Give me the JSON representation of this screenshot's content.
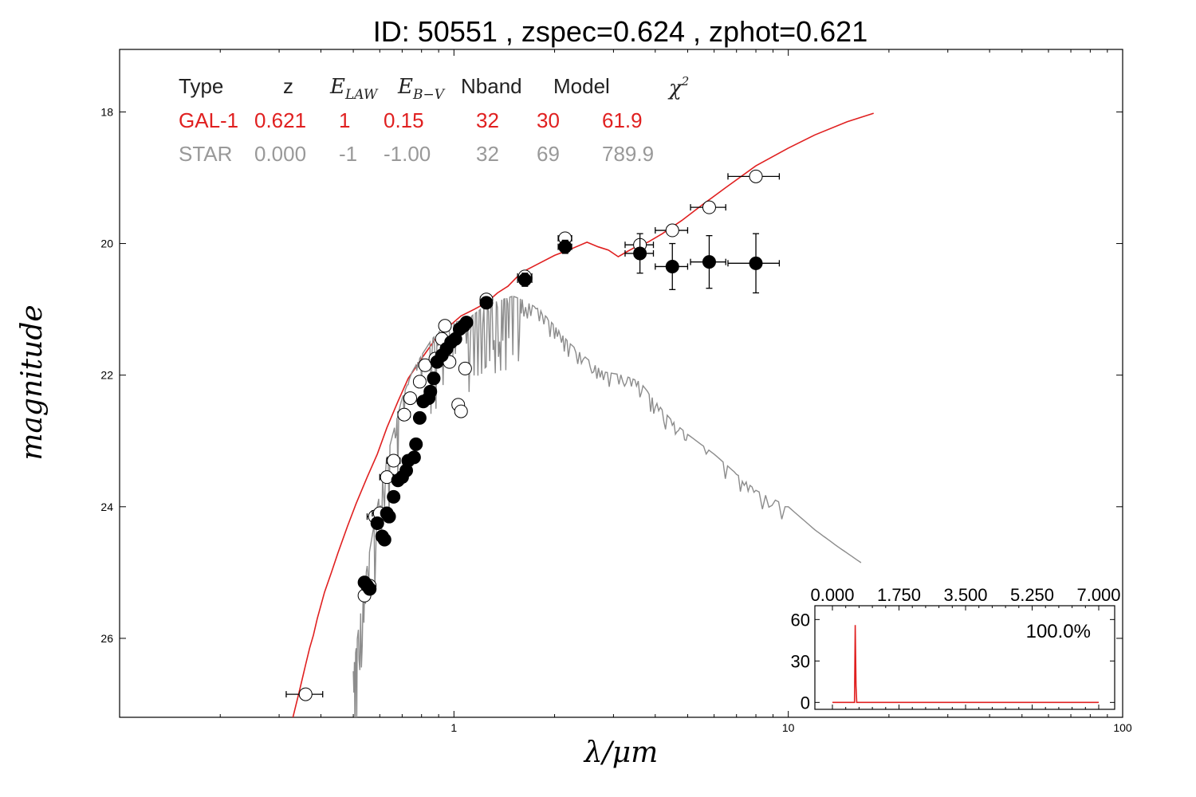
{
  "title": "ID:  50551 , zspec=0.624 , zphot=0.621",
  "colors": {
    "galaxy": "#e02020",
    "star": "#8c8c8c",
    "points": "#000000",
    "open": "#ffffff"
  },
  "fit_table": {
    "header": {
      "type": "Type",
      "z": "z",
      "e_law": "E",
      "e_law_sub": "LAW",
      "e_bv": "E",
      "e_bv_sub": "B−V",
      "nband": "Nband",
      "model": "Model",
      "chi2": "χ",
      "chi2_sup": "2"
    },
    "rows": [
      {
        "type": "GAL-1",
        "z": "0.621",
        "e_law": "1",
        "e_bv": "0.15",
        "nband": "32",
        "model": "30",
        "chi2": "61.9",
        "color": "#e02020"
      },
      {
        "type": "STAR",
        "z": "0.000",
        "e_law": "-1",
        "e_bv": "-1.00",
        "nband": "32",
        "model": "69",
        "chi2": "789.9",
        "color": "#999999"
      }
    ]
  },
  "chart_data": [
    {
      "type": "scatter",
      "xlabel": "λ/μm",
      "ylabel": "magnitude",
      "x_scale": "log",
      "xlim": [
        0.1,
        100
      ],
      "ylim": [
        27.2,
        17.05
      ],
      "y_inverted": true,
      "x_ticks": [
        1,
        10,
        100
      ],
      "x_tick_labels": [
        "1",
        "10",
        "100"
      ],
      "y_ticks": [
        18,
        20,
        22,
        24,
        26
      ],
      "y_tick_labels": [
        "18",
        "20",
        "22",
        "24",
        "26"
      ],
      "series": [
        {
          "name": "GAL-1",
          "kind": "line",
          "color": "#e02020",
          "x": [
            0.33,
            0.345,
            0.36,
            0.37,
            0.38,
            0.39,
            0.41,
            0.43,
            0.45,
            0.48,
            0.51,
            0.55,
            0.59,
            0.63,
            0.68,
            0.73,
            0.8,
            0.88,
            0.97,
            1.05,
            1.15,
            1.25,
            1.35,
            1.45,
            1.55,
            1.65,
            1.8,
            2.0,
            2.2,
            2.5,
            2.7,
            2.9,
            3.1,
            3.3,
            3.5,
            3.8,
            4.2,
            4.8,
            5.5,
            6.5,
            8.0,
            10.0,
            12.0,
            15.0,
            18.0
          ],
          "y": [
            27.2,
            26.8,
            26.4,
            26.15,
            25.95,
            25.7,
            25.3,
            25.0,
            24.7,
            24.3,
            23.95,
            23.55,
            23.2,
            22.8,
            22.4,
            22.05,
            21.75,
            21.45,
            21.25,
            21.1,
            21.0,
            20.9,
            20.75,
            20.65,
            20.5,
            20.4,
            20.3,
            20.18,
            20.1,
            19.98,
            20.05,
            20.1,
            20.2,
            20.12,
            20.05,
            19.98,
            19.85,
            19.65,
            19.42,
            19.15,
            18.82,
            18.55,
            18.35,
            18.15,
            18.02
          ]
        },
        {
          "name": "STAR",
          "kind": "line",
          "color": "#8c8c8c",
          "x": [
            0.5,
            0.52,
            0.55,
            0.58,
            0.62,
            0.66,
            0.7,
            0.75,
            0.8,
            0.86,
            0.92,
            1.0,
            1.1,
            1.2,
            1.3,
            1.4,
            1.5,
            1.6,
            1.8,
            2.0,
            2.2,
            2.5,
            2.8,
            3.2,
            3.6,
            4.0,
            4.5,
            5.0,
            6.0,
            7.0,
            8.0,
            10.0,
            12.0,
            14.0,
            16.5
          ],
          "y": [
            26.5,
            25.8,
            24.9,
            24.2,
            23.4,
            22.85,
            22.35,
            21.95,
            21.7,
            21.45,
            21.3,
            21.2,
            21.15,
            21.0,
            20.9,
            20.85,
            20.8,
            20.85,
            21.0,
            21.25,
            21.5,
            21.75,
            21.95,
            22.0,
            22.1,
            22.4,
            22.7,
            22.9,
            23.2,
            23.5,
            23.75,
            24.0,
            24.35,
            24.6,
            24.85
          ]
        },
        {
          "name": "observed (open)",
          "kind": "points-open",
          "x": [
            0.36,
            0.54,
            0.56,
            0.58,
            0.6,
            0.63,
            0.66,
            0.71,
            0.74,
            0.79,
            0.82,
            0.88,
            0.92,
            0.94,
            0.97,
            1.03,
            1.05,
            1.08,
            1.25,
            1.63,
            2.15,
            3.6,
            4.5,
            5.8,
            8.0
          ],
          "y": [
            26.85,
            25.35,
            25.2,
            24.15,
            24.1,
            23.55,
            23.3,
            22.6,
            22.35,
            22.1,
            21.85,
            21.75,
            21.45,
            21.25,
            21.8,
            22.45,
            22.55,
            21.9,
            20.85,
            20.5,
            19.92,
            20.02,
            19.8,
            19.45,
            18.98
          ],
          "xerr": [
            0.045,
            0.02,
            0.02,
            0.03,
            0.03,
            0.03,
            0.03,
            0.03,
            0.03,
            0.03,
            0.03,
            0.03,
            0.03,
            0.03,
            0.03,
            0.04,
            0.04,
            0.04,
            0.05,
            0.08,
            0.1,
            0.35,
            0.5,
            0.7,
            1.4
          ]
        },
        {
          "name": "observed (filled)",
          "kind": "points-filled",
          "x": [
            0.54,
            0.55,
            0.56,
            0.59,
            0.61,
            0.62,
            0.63,
            0.64,
            0.66,
            0.68,
            0.7,
            0.72,
            0.73,
            0.76,
            0.77,
            0.79,
            0.81,
            0.84,
            0.85,
            0.87,
            0.89,
            0.92,
            0.95,
            0.98,
            1.01,
            1.04,
            1.07,
            1.09,
            1.25,
            1.63,
            2.15,
            3.6,
            4.5,
            5.8,
            8.0
          ],
          "y": [
            25.15,
            25.2,
            25.25,
            24.25,
            24.45,
            24.5,
            24.1,
            24.15,
            23.85,
            23.6,
            23.55,
            23.45,
            23.3,
            23.25,
            23.05,
            22.65,
            22.4,
            22.35,
            22.25,
            22.05,
            21.8,
            21.7,
            21.6,
            21.5,
            21.45,
            21.3,
            21.25,
            21.2,
            20.9,
            20.55,
            20.05,
            20.15,
            20.35,
            20.28,
            20.3
          ],
          "xerr": [
            0.02,
            0.02,
            0.02,
            0.02,
            0.02,
            0.02,
            0.02,
            0.02,
            0.02,
            0.02,
            0.02,
            0.02,
            0.02,
            0.02,
            0.02,
            0.02,
            0.02,
            0.02,
            0.02,
            0.02,
            0.02,
            0.02,
            0.02,
            0.02,
            0.02,
            0.02,
            0.02,
            0.02,
            0.05,
            0.08,
            0.1,
            0.35,
            0.5,
            0.7,
            1.4
          ],
          "yerr": [
            0.05,
            0.05,
            0.05,
            0.05,
            0.05,
            0.05,
            0.05,
            0.05,
            0.05,
            0.05,
            0.05,
            0.05,
            0.05,
            0.05,
            0.05,
            0.05,
            0.05,
            0.05,
            0.05,
            0.05,
            0.05,
            0.05,
            0.05,
            0.05,
            0.05,
            0.05,
            0.05,
            0.05,
            0.08,
            0.1,
            0.1,
            0.3,
            0.35,
            0.4,
            0.45
          ]
        }
      ]
    },
    {
      "type": "line",
      "title": "",
      "annotation": "100.0%",
      "xlim": [
        0.0,
        7.0
      ],
      "ylim": [
        -5,
        70
      ],
      "x_ticks": [
        0.0,
        1.75,
        3.5,
        5.25,
        7.0
      ],
      "x_tick_labels": [
        "0.000",
        "1.750",
        "3.500",
        "5.250",
        "7.000"
      ],
      "y_ticks": [
        0,
        30,
        60
      ],
      "y_tick_labels": [
        "0",
        "30",
        "60"
      ],
      "series": [
        {
          "color": "#e02020",
          "x": [
            0.0,
            0.5,
            0.58,
            0.6,
            0.62,
            0.64,
            0.7,
            7.0
          ],
          "y": [
            0,
            0,
            0,
            56,
            12,
            0,
            0,
            0
          ]
        }
      ]
    }
  ]
}
